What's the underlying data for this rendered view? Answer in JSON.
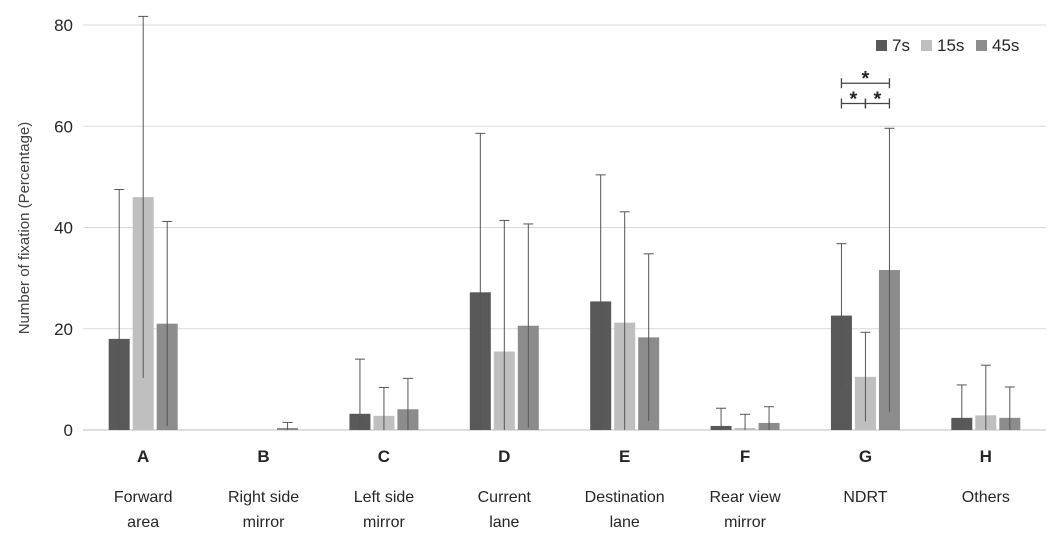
{
  "chart_data": {
    "type": "bar",
    "ylabel": "Number of fixation (Percentage)",
    "ylim": [
      0,
      80
    ],
    "yticks": [
      0,
      20,
      40,
      60,
      80
    ],
    "grid": "horizontal",
    "legend_position": "top-right",
    "categories": [
      {
        "letter": "A",
        "label_lines": [
          "Forward",
          "area"
        ]
      },
      {
        "letter": "B",
        "label_lines": [
          "Right side",
          "mirror"
        ]
      },
      {
        "letter": "C",
        "label_lines": [
          "Left side",
          "mirror"
        ]
      },
      {
        "letter": "D",
        "label_lines": [
          "Current",
          "lane"
        ]
      },
      {
        "letter": "E",
        "label_lines": [
          "Destination",
          "lane"
        ]
      },
      {
        "letter": "F",
        "label_lines": [
          "Rear view",
          "mirror"
        ]
      },
      {
        "letter": "G",
        "label_lines": [
          "NDRT"
        ]
      },
      {
        "letter": "H",
        "label_lines": [
          "Others"
        ]
      }
    ],
    "series": [
      {
        "name": "7s",
        "color": "#595959",
        "values": [
          18,
          0,
          3.2,
          27.2,
          25.4,
          0.8,
          22.6,
          2.4
        ],
        "error": [
          29.5,
          0,
          10.8,
          31.4,
          25.0,
          3.5,
          14.2,
          6.5
        ]
      },
      {
        "name": "15s",
        "color": "#bfbfbf",
        "values": [
          46,
          0,
          2.8,
          15.5,
          21.2,
          0.4,
          10.5,
          2.9
        ],
        "error": [
          35.7,
          0,
          5.6,
          25.9,
          21.9,
          2.7,
          8.8,
          9.9
        ]
      },
      {
        "name": "45s",
        "color": "#8c8c8c",
        "values": [
          21,
          0.4,
          4.1,
          20.6,
          18.3,
          1.4,
          31.6,
          2.4
        ],
        "error": [
          20.2,
          1.1,
          6.1,
          20.1,
          16.5,
          3.2,
          28.0,
          6.1
        ]
      }
    ],
    "annotations": [
      {
        "category": "G",
        "from": 0,
        "to": 2,
        "level": 68.5,
        "text": "*"
      },
      {
        "category": "G",
        "from": 0,
        "to": 1,
        "level": 64.5,
        "text": "*"
      },
      {
        "category": "G",
        "from": 1,
        "to": 2,
        "level": 64.5,
        "text": "*"
      }
    ]
  }
}
